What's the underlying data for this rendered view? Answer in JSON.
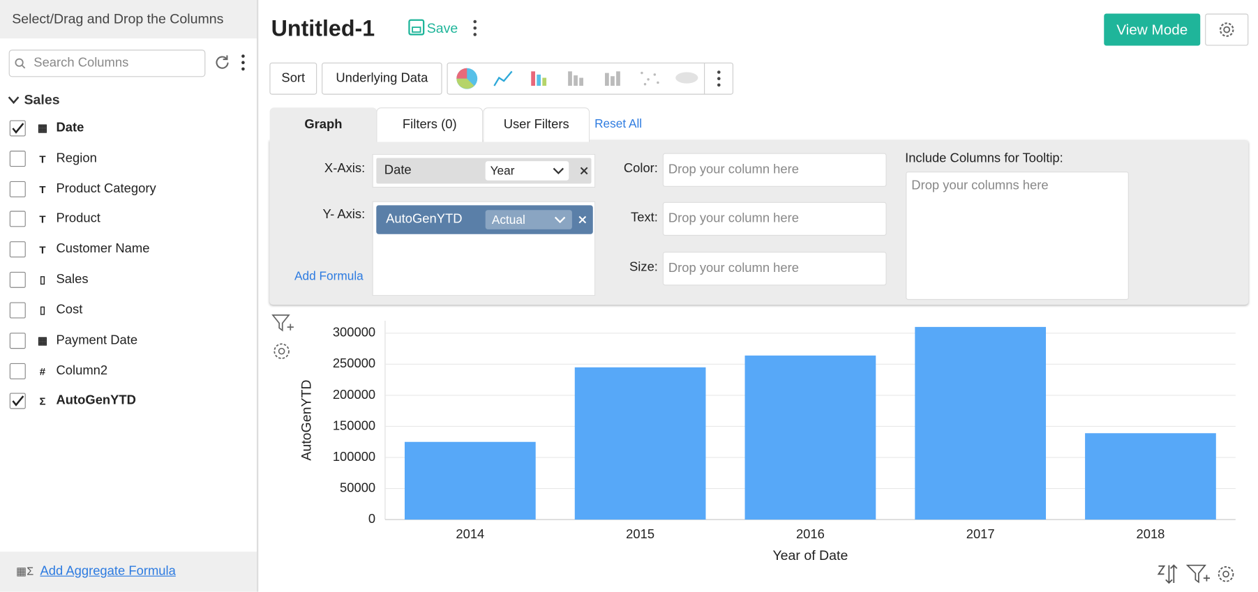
{
  "sidebar": {
    "title": "Select/Drag and Drop the Columns",
    "search_placeholder": "Search Columns",
    "group": "Sales",
    "columns": [
      {
        "name": "Date",
        "checked": true
      },
      {
        "name": "Region",
        "checked": false
      },
      {
        "name": "Product Category",
        "checked": false
      },
      {
        "name": "Product",
        "checked": false
      },
      {
        "name": "Customer Name",
        "checked": false
      },
      {
        "name": "Sales",
        "checked": false
      },
      {
        "name": "Cost",
        "checked": false
      },
      {
        "name": "Payment Date",
        "checked": false
      },
      {
        "name": "Column2",
        "checked": false
      },
      {
        "name": "AutoGenYTD",
        "checked": true
      }
    ],
    "footer_link": "Add Aggregate Formula"
  },
  "header": {
    "title": "Untitled-1",
    "save": "Save",
    "view_mode": "View Mode"
  },
  "toolbar": {
    "buttons": [
      "Sort",
      "Underlying Data"
    ]
  },
  "tabs": [
    "Graph",
    "Filters (0)",
    "User Filters"
  ],
  "reset": "Reset All",
  "config": {
    "x_axis_label": "X-Axis:",
    "x_axis_column": "Date",
    "x_axis_func": "Year",
    "y_axis_label": "Y- Axis:",
    "y_axis_column": "AutoGenYTD",
    "y_axis_func": "Actual",
    "add_formula": "Add Formula",
    "color_label": "Color:",
    "text_label": "Text:",
    "size_label": "Size:",
    "drop_placeholder": "Drop your column here",
    "tooltip_label": "Include Columns for Tooltip:",
    "tooltip_placeholder": "Drop your columns here"
  },
  "chart_data": {
    "type": "bar",
    "x_label": "Year of Date",
    "y_label": "AutoGenYTD",
    "categories": [
      "2014",
      "2015",
      "2016",
      "2017",
      "2018"
    ],
    "values": [
      125000,
      245000,
      264000,
      310000,
      139000
    ],
    "color": "#57a8f8",
    "ylim": [
      0,
      320000
    ],
    "yticks": [
      0,
      50000,
      100000,
      150000,
      200000,
      250000,
      300000
    ],
    "grid": true
  }
}
